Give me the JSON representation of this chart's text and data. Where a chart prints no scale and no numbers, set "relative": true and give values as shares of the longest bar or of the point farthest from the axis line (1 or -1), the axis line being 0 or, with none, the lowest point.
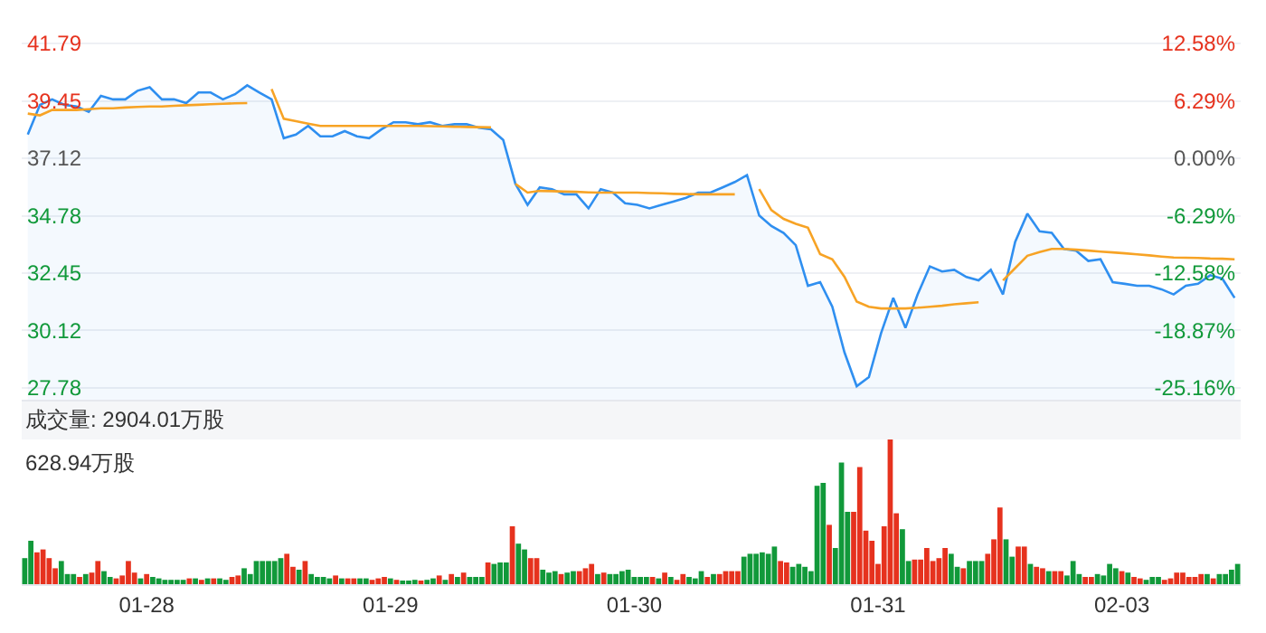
{
  "chart_data": [
    {
      "type": "line",
      "ylim": [
        27.3,
        43.55
      ],
      "yticks": [
        27.78,
        30.12,
        32.45,
        34.78,
        37.12,
        39.45,
        41.79
      ],
      "y2lim": [
        -26.45,
        17.32
      ],
      "y2ticks": [
        {
          "value": -25.16,
          "label": "-25.16%"
        },
        {
          "value": -18.87,
          "label": "-18.87%"
        },
        {
          "value": -12.58,
          "label": "-12.58%"
        },
        {
          "value": -6.29,
          "label": "-6.29%"
        },
        {
          "value": 0,
          "label": "0.00%"
        },
        {
          "value": 6.29,
          "label": "6.29%"
        },
        {
          "value": 12.58,
          "label": "12.58%"
        }
      ],
      "grid": "y",
      "tick_labels": "y",
      "categories": [
        null,
        null,
        null,
        null,
        null,
        null,
        null,
        null,
        null,
        null,
        null,
        null,
        null,
        null,
        null,
        null,
        null,
        null,
        null,
        null,
        null,
        null,
        null,
        null,
        null,
        null,
        null,
        null,
        null,
        null,
        null,
        null,
        null,
        null,
        null,
        null,
        null,
        null,
        null,
        null,
        null,
        null,
        null,
        null,
        null,
        null,
        null,
        null,
        null,
        null,
        null,
        null,
        null,
        null,
        null,
        null,
        null,
        null,
        null,
        null,
        null,
        null,
        null,
        null,
        null,
        null,
        null,
        null,
        null,
        null,
        null,
        null,
        null,
        null,
        null,
        null,
        null,
        null,
        null,
        null,
        null,
        null,
        null,
        null,
        null,
        null,
        null,
        null,
        null,
        null,
        null,
        null,
        null,
        null,
        null,
        null,
        null,
        null,
        null,
        null
      ],
      "series": [
        {
          "type": "area",
          "color": "#2f8ff0",
          "values": [
            38.08,
            39.29,
            39.51,
            39.29,
            39.22,
            39.0,
            39.65,
            39.51,
            39.51,
            39.86,
            40.0,
            39.51,
            39.51,
            39.36,
            39.79,
            39.79,
            39.51,
            39.72,
            40.08,
            39.79,
            39.51,
            37.93,
            38.08,
            38.43,
            38.01,
            38.01,
            38.22,
            38.01,
            37.93,
            38.29,
            38.58,
            38.58,
            38.5,
            38.58,
            38.43,
            38.5,
            38.5,
            38.36,
            38.29,
            37.86,
            36.08,
            35.22,
            35.93,
            35.86,
            35.65,
            35.65,
            35.08,
            35.86,
            35.72,
            35.29,
            35.22,
            35.08,
            35.22,
            35.36,
            35.51,
            35.72,
            35.72,
            35.93,
            36.15,
            36.43,
            34.79,
            34.36,
            34.08,
            33.58,
            31.93,
            32.08,
            31.08,
            29.22,
            27.85,
            28.22,
            30.01,
            31.44,
            30.22,
            31.58,
            32.72,
            32.51,
            32.58,
            32.29,
            32.15,
            32.58,
            31.58,
            33.72,
            34.86,
            34.15,
            34.08,
            33.43,
            33.36,
            32.94,
            33.01,
            32.08,
            32.01,
            31.93,
            31.93,
            31.79,
            31.58,
            31.93,
            32.01,
            32.36,
            32.22,
            31.44
          ]
        },
        {
          "type": "line",
          "color": "#f7a325",
          "values": [
            38.93,
            38.86,
            39.08,
            39.08,
            39.08,
            39.11,
            39.15,
            39.15,
            39.18,
            39.2,
            39.22,
            39.22,
            39.25,
            39.27,
            39.29,
            39.31,
            39.33,
            39.35,
            39.36,
            null,
            39.93,
            38.72,
            38.62,
            38.52,
            38.43,
            38.43,
            38.43,
            38.43,
            38.43,
            38.43,
            38.43,
            38.43,
            38.43,
            38.42,
            38.41,
            38.4,
            38.39,
            38.38,
            38.37,
            null,
            36.08,
            35.72,
            35.79,
            35.78,
            35.76,
            35.75,
            35.73,
            35.72,
            35.72,
            35.72,
            35.72,
            35.7,
            35.69,
            35.67,
            35.66,
            35.65,
            35.65,
            35.65,
            35.65,
            null,
            35.86,
            35.01,
            34.65,
            34.45,
            34.29,
            33.22,
            33.01,
            32.29,
            31.29,
            31.08,
            31.01,
            31.01,
            31.01,
            31.04,
            31.08,
            31.12,
            31.18,
            31.22,
            31.26,
            null,
            32.15,
            32.65,
            33.15,
            33.3,
            33.43,
            33.43,
            33.4,
            33.36,
            33.32,
            33.29,
            33.25,
            33.21,
            33.17,
            33.12,
            33.08,
            33.07,
            33.06,
            33.04,
            33.03,
            33.01
          ]
        }
      ]
    },
    {
      "type": "bar",
      "relative": true,
      "title": "成交量: 2904.01万股",
      "annotations": [
        "628.94万股"
      ],
      "tick_labels": "x",
      "categories": [
        null,
        null,
        null,
        null,
        null,
        null,
        null,
        null,
        null,
        null,
        null,
        null,
        null,
        null,
        null,
        null,
        null,
        null,
        null,
        null,
        "01-28",
        null,
        null,
        null,
        null,
        null,
        null,
        null,
        null,
        null,
        null,
        null,
        null,
        null,
        null,
        null,
        null,
        null,
        null,
        null,
        null,
        null,
        null,
        null,
        null,
        null,
        null,
        null,
        null,
        null,
        null,
        null,
        null,
        null,
        null,
        null,
        null,
        null,
        null,
        null,
        "01-29",
        null,
        null,
        null,
        null,
        null,
        null,
        null,
        null,
        null,
        null,
        null,
        null,
        null,
        null,
        null,
        null,
        null,
        null,
        null,
        null,
        null,
        null,
        null,
        null,
        null,
        null,
        null,
        null,
        null,
        null,
        null,
        null,
        null,
        null,
        null,
        null,
        null,
        null,
        null,
        "01-30",
        null,
        null,
        null,
        null,
        null,
        null,
        null,
        null,
        null,
        null,
        null,
        null,
        null,
        null,
        null,
        null,
        null,
        null,
        null,
        null,
        null,
        null,
        null,
        null,
        null,
        null,
        null,
        null,
        null,
        null,
        null,
        null,
        null,
        null,
        null,
        null,
        null,
        null,
        null,
        "01-31",
        null,
        null,
        null,
        null,
        null,
        null,
        null,
        null,
        null,
        null,
        null,
        null,
        null,
        null,
        null,
        null,
        null,
        null,
        null,
        null,
        null,
        null,
        null,
        null,
        null,
        null,
        null,
        null,
        null,
        null,
        null,
        null,
        null,
        null,
        null,
        null,
        null,
        null,
        null,
        "02-03",
        null,
        null,
        null,
        null,
        null,
        null,
        null,
        null,
        null,
        null,
        null,
        null,
        null,
        null,
        null,
        null,
        null,
        null,
        null
      ],
      "values": [
        0.18,
        0.3,
        0.22,
        0.24,
        0.18,
        0.11,
        0.16,
        0.07,
        0.07,
        0.05,
        0.07,
        0.08,
        0.16,
        0.09,
        0.05,
        0.04,
        0.06,
        0.16,
        0.08,
        0.04,
        0.07,
        0.05,
        0.04,
        0.03,
        0.03,
        0.03,
        0.03,
        0.04,
        0.04,
        0.03,
        0.04,
        0.04,
        0.04,
        0.03,
        0.05,
        0.06,
        0.11,
        0.07,
        0.16,
        0.16,
        0.16,
        0.16,
        0.18,
        0.21,
        0.12,
        0.1,
        0.16,
        0.07,
        0.05,
        0.05,
        0.04,
        0.06,
        0.04,
        0.04,
        0.04,
        0.04,
        0.04,
        0.03,
        0.04,
        0.05,
        0.04,
        0.03,
        0.02,
        0.02,
        0.03,
        0.02,
        0.03,
        0.04,
        0.06,
        0.03,
        0.07,
        0.05,
        0.08,
        0.05,
        0.05,
        0.05,
        0.15,
        0.14,
        0.15,
        0.15,
        0.4,
        0.28,
        0.24,
        0.18,
        0.18,
        0.1,
        0.08,
        0.09,
        0.07,
        0.08,
        0.09,
        0.09,
        0.11,
        0.14,
        0.07,
        0.08,
        0.07,
        0.07,
        0.09,
        0.1,
        0.05,
        0.05,
        0.05,
        0.05,
        0.04,
        0.08,
        0.05,
        0.03,
        0.07,
        0.05,
        0.04,
        0.09,
        0.05,
        0.07,
        0.07,
        0.09,
        0.09,
        0.09,
        0.19,
        0.21,
        0.21,
        0.22,
        0.21,
        0.26,
        0.16,
        0.15,
        0.12,
        0.14,
        0.12,
        0.09,
        0.68,
        0.7,
        0.41,
        0.25,
        0.84,
        0.5,
        0.5,
        0.81,
        0.37,
        0.3,
        0.14,
        0.4,
        1.0,
        0.49,
        0.38,
        0.16,
        0.17,
        0.17,
        0.25,
        0.16,
        0.18,
        0.25,
        0.21,
        0.12,
        0.11,
        0.16,
        0.16,
        0.16,
        0.21,
        0.31,
        0.53,
        0.31,
        0.19,
        0.26,
        0.26,
        0.14,
        0.12,
        0.11,
        0.09,
        0.09,
        0.09,
        0.06,
        0.16,
        0.07,
        0.05,
        0.05,
        0.07,
        0.06,
        0.14,
        0.11,
        0.09,
        0.08,
        0.05,
        0.04,
        0.03,
        0.05,
        0.05,
        0.03,
        0.04,
        0.08,
        0.08,
        0.05,
        0.05,
        0.07,
        0.07,
        0.04,
        0.07,
        0.07,
        0.1,
        0.14
      ],
      "colors": [
        "#11993a",
        "#11993a",
        "#e6321e",
        "#e6321e",
        "#e6321e",
        "#e6321e",
        "#11993a",
        "#11993a",
        "#11993a",
        "#e6321e",
        "#11993a",
        "#e6321e",
        "#e6321e",
        "#11993a",
        "#11993a",
        "#e6321e",
        "#e6321e",
        "#e6321e",
        "#e6321e",
        "#11993a",
        "#e6321e",
        "#11993a",
        "#11993a",
        "#11993a",
        "#11993a",
        "#11993a",
        "#11993a",
        "#e6321e",
        "#11993a",
        "#e6321e",
        "#11993a",
        "#e6321e",
        "#11993a",
        "#11993a",
        "#e6321e",
        "#e6321e",
        "#11993a",
        "#11993a",
        "#11993a",
        "#11993a",
        "#11993a",
        "#11993a",
        "#11993a",
        "#e6321e",
        "#e6321e",
        "#11993a",
        "#e6321e",
        "#11993a",
        "#11993a",
        "#11993a",
        "#11993a",
        "#e6321e",
        "#11993a",
        "#e6321e",
        "#e6321e",
        "#11993a",
        "#11993a",
        "#e6321e",
        "#e6321e",
        "#e6321e",
        "#11993a",
        "#e6321e",
        "#11993a",
        "#11993a",
        "#11993a",
        "#e6321e",
        "#11993a",
        "#11993a",
        "#e6321e",
        "#11993a",
        "#e6321e",
        "#11993a",
        "#e6321e",
        "#11993a",
        "#11993a",
        "#11993a",
        "#e6321e",
        "#11993a",
        "#11993a",
        "#11993a",
        "#e6321e",
        "#11993a",
        "#11993a",
        "#e6321e",
        "#e6321e",
        "#11993a",
        "#11993a",
        "#11993a",
        "#e6321e",
        "#11993a",
        "#11993a",
        "#e6321e",
        "#e6321e",
        "#e6321e",
        "#11993a",
        "#e6321e",
        "#11993a",
        "#11993a",
        "#11993a",
        "#11993a",
        "#11993a",
        "#11993a",
        "#11993a",
        "#e6321e",
        "#11993a",
        "#e6321e",
        "#11993a",
        "#e6321e",
        "#e6321e",
        "#11993a",
        "#11993a",
        "#11993a",
        "#e6321e",
        "#11993a",
        "#e6321e",
        "#e6321e",
        "#e6321e",
        "#e6321e",
        "#11993a",
        "#11993a",
        "#11993a",
        "#11993a",
        "#11993a",
        "#11993a",
        "#e6321e",
        "#e6321e",
        "#11993a",
        "#11993a",
        "#11993a",
        "#11993a",
        "#11993a",
        "#11993a",
        "#e6321e",
        "#11993a",
        "#11993a",
        "#11993a",
        "#e6321e",
        "#e6321e",
        "#e6321e",
        "#e6321e",
        "#e6321e",
        "#e6321e",
        "#e6321e",
        "#e6321e",
        "#11993a",
        "#11993a",
        "#e6321e",
        "#e6321e",
        "#e6321e",
        "#e6321e",
        "#e6321e",
        "#e6321e",
        "#11993a",
        "#11993a",
        "#e6321e",
        "#11993a",
        "#11993a",
        "#11993a",
        "#e6321e",
        "#e6321e",
        "#e6321e",
        "#11993a",
        "#11993a",
        "#e6321e",
        "#e6321e",
        "#11993a",
        "#e6321e",
        "#e6321e",
        "#11993a",
        "#e6321e",
        "#e6321e",
        "#11993a",
        "#11993a",
        "#11993a",
        "#e6321e",
        "#e6321e",
        "#11993a",
        "#11993a",
        "#11993a",
        "#11993a",
        "#e6321e",
        "#11993a",
        "#e6321e",
        "#e6321e",
        "#11993a",
        "#11993a",
        "#11993a",
        "#e6321e",
        "#e6321e",
        "#e6321e",
        "#e6321e",
        "#e6321e",
        "#e6321e",
        "#e6321e",
        "#11993a",
        "#e6321e",
        "#11993a",
        "#11993a",
        "#11993a",
        "#11993a"
      ]
    }
  ]
}
